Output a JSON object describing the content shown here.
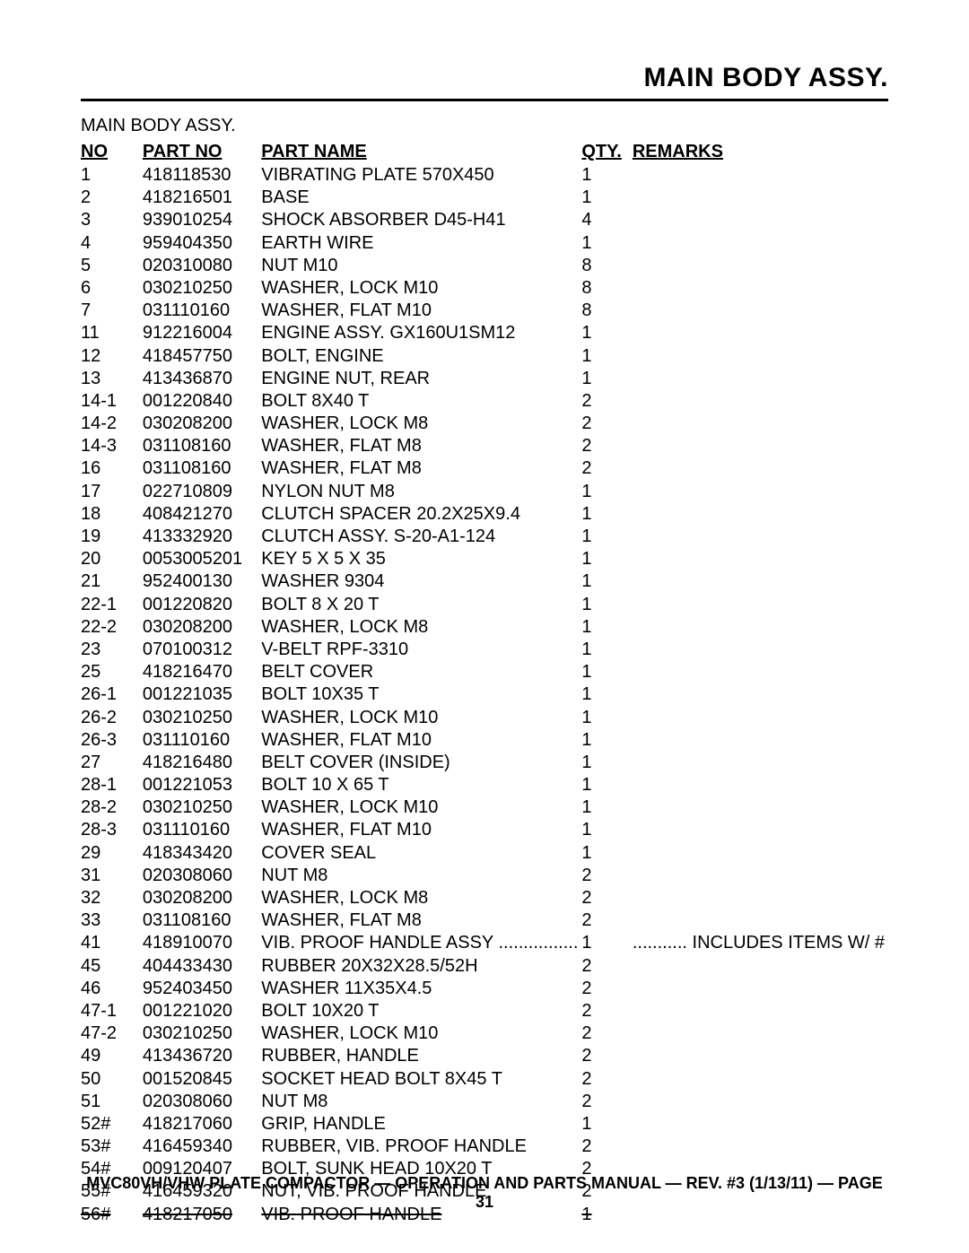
{
  "title": "MAIN BODY ASSY.",
  "subtitle": "MAIN BODY ASSY.",
  "headers": {
    "no": "NO",
    "part_no": "PART NO",
    "part_name": "PART NAME",
    "qty": "QTY.",
    "remarks": "REMARKS"
  },
  "rows": [
    {
      "no": "1",
      "part_no": "418118530",
      "name": "VIBRATING PLATE 570X450",
      "qty": "1",
      "remarks": ""
    },
    {
      "no": "2",
      "part_no": "418216501",
      "name": "BASE",
      "qty": "1",
      "remarks": ""
    },
    {
      "no": "3",
      "part_no": "939010254",
      "name": "SHOCK ABSORBER D45-H41",
      "qty": "4",
      "remarks": ""
    },
    {
      "no": "4",
      "part_no": "959404350",
      "name": "EARTH WIRE",
      "qty": "1",
      "remarks": ""
    },
    {
      "no": "5",
      "part_no": "020310080",
      "name": "NUT M10",
      "qty": "8",
      "remarks": ""
    },
    {
      "no": "6",
      "part_no": "030210250",
      "name": "WASHER, LOCK M10",
      "qty": "8",
      "remarks": ""
    },
    {
      "no": "7",
      "part_no": "031110160",
      "name": "WASHER, FLAT M10",
      "qty": "8",
      "remarks": ""
    },
    {
      "no": "11",
      "part_no": "912216004",
      "name": "ENGINE ASSY. GX160U1SM12",
      "qty": "1",
      "remarks": ""
    },
    {
      "no": "12",
      "part_no": "418457750",
      "name": "BOLT, ENGINE",
      "qty": "1",
      "remarks": ""
    },
    {
      "no": "13",
      "part_no": "413436870",
      "name": "ENGINE NUT, REAR",
      "qty": "1",
      "remarks": ""
    },
    {
      "no": "14-1",
      "part_no": "001220840",
      "name": "BOLT 8X40 T",
      "qty": "2",
      "remarks": ""
    },
    {
      "no": "14-2",
      "part_no": "030208200",
      "name": "WASHER, LOCK M8",
      "qty": "2",
      "remarks": ""
    },
    {
      "no": "14-3",
      "part_no": "031108160",
      "name": "WASHER, FLAT M8",
      "qty": "2",
      "remarks": ""
    },
    {
      "no": "16",
      "part_no": "031108160",
      "name": "WASHER, FLAT M8",
      "qty": "2",
      "remarks": ""
    },
    {
      "no": "17",
      "part_no": "022710809",
      "name": "NYLON NUT M8",
      "qty": "1",
      "remarks": ""
    },
    {
      "no": "18",
      "part_no": "408421270",
      "name": "CLUTCH SPACER 20.2X25X9.4",
      "qty": "1",
      "remarks": ""
    },
    {
      "no": "19",
      "part_no": "413332920",
      "name": "CLUTCH ASSY. S-20-A1-124",
      "qty": "1",
      "remarks": ""
    },
    {
      "no": "20",
      "part_no": "0053005201",
      "name": "KEY 5 X 5 X 35",
      "qty": "1",
      "remarks": ""
    },
    {
      "no": "21",
      "part_no": "952400130",
      "name": "WASHER 9304",
      "qty": "1",
      "remarks": ""
    },
    {
      "no": "22-1",
      "part_no": "001220820",
      "name": "BOLT 8 X 20 T",
      "qty": "1",
      "remarks": ""
    },
    {
      "no": "22-2",
      "part_no": "030208200",
      "name": "WASHER, LOCK M8",
      "qty": "1",
      "remarks": ""
    },
    {
      "no": "23",
      "part_no": "070100312",
      "name": "V-BELT RPF-3310",
      "qty": "1",
      "remarks": ""
    },
    {
      "no": "25",
      "part_no": "418216470",
      "name": "BELT COVER",
      "qty": "1",
      "remarks": ""
    },
    {
      "no": "26-1",
      "part_no": "001221035",
      "name": "BOLT 10X35 T",
      "qty": "1",
      "remarks": ""
    },
    {
      "no": "26-2",
      "part_no": "030210250",
      "name": "WASHER, LOCK M10",
      "qty": "1",
      "remarks": ""
    },
    {
      "no": "26-3",
      "part_no": "031110160",
      "name": "WASHER, FLAT M10",
      "qty": "1",
      "remarks": ""
    },
    {
      "no": "27",
      "part_no": "418216480",
      "name": "BELT COVER (INSIDE)",
      "qty": "1",
      "remarks": ""
    },
    {
      "no": "28-1",
      "part_no": "001221053",
      "name": "BOLT 10 X 65 T",
      "qty": "1",
      "remarks": ""
    },
    {
      "no": "28-2",
      "part_no": "030210250",
      "name": "WASHER, LOCK M10",
      "qty": "1",
      "remarks": ""
    },
    {
      "no": "28-3",
      "part_no": "031110160",
      "name": "WASHER, FLAT M10",
      "qty": "1",
      "remarks": ""
    },
    {
      "no": "29",
      "part_no": "418343420",
      "name": "COVER SEAL",
      "qty": "1",
      "remarks": ""
    },
    {
      "no": "31",
      "part_no": "020308060",
      "name": " NUT M8",
      "qty": "2",
      "remarks": ""
    },
    {
      "no": "32",
      "part_no": "030208200",
      "name": "WASHER, LOCK M8",
      "qty": "2",
      "remarks": ""
    },
    {
      "no": "33",
      "part_no": "031108160",
      "name": "WASHER, FLAT M8",
      "qty": "2",
      "remarks": ""
    },
    {
      "no": "41",
      "part_no": "418910070",
      "name": "VIB. PROOF HANDLE ASSY",
      "qty": "1",
      "remarks": "INCLUDES ITEMS W/ #",
      "dotted": true
    },
    {
      "no": "45",
      "part_no": "404433430",
      "name": "RUBBER 20X32X28.5/52H",
      "qty": "2",
      "remarks": ""
    },
    {
      "no": "46",
      "part_no": "952403450",
      "name": "WASHER 11X35X4.5",
      "qty": "2",
      "remarks": ""
    },
    {
      "no": "47-1",
      "part_no": "001221020",
      "name": "BOLT 10X20 T",
      "qty": "2",
      "remarks": ""
    },
    {
      "no": "47-2",
      "part_no": "030210250",
      "name": "WASHER, LOCK M10",
      "qty": "2",
      "remarks": ""
    },
    {
      "no": "49",
      "part_no": "413436720",
      "name": "RUBBER, HANDLE",
      "qty": "2",
      "remarks": ""
    },
    {
      "no": "50",
      "part_no": "001520845",
      "name": "SOCKET HEAD BOLT 8X45 T",
      "qty": "2",
      "remarks": ""
    },
    {
      "no": "51",
      "part_no": "020308060",
      "name": " NUT M8",
      "qty": "2",
      "remarks": ""
    },
    {
      "no": "52#",
      "part_no": "418217060",
      "name": "GRIP, HANDLE",
      "qty": "1",
      "remarks": ""
    },
    {
      "no": "53#",
      "part_no": "416459340",
      "name": "RUBBER, VIB. PROOF HANDLE",
      "qty": "2",
      "remarks": ""
    },
    {
      "no": "54#",
      "part_no": "009120407",
      "name": "BOLT, SUNK HEAD 10X20 T",
      "qty": "2",
      "remarks": ""
    },
    {
      "no": "55#",
      "part_no": "416459320",
      "name": "NUT, VIB. PROOF HANDLE",
      "qty": "2",
      "remarks": ""
    },
    {
      "no": "56#",
      "part_no": "418217050",
      "name": "VIB. PROOF HANDLE",
      "qty": "1",
      "remarks": "",
      "struck": true
    }
  ],
  "footer": "MVC80VH/VHW PLATE COMPACTOR — OPERATION AND PARTS MANUAL — REV. #3 (1/13/11) — PAGE 31"
}
